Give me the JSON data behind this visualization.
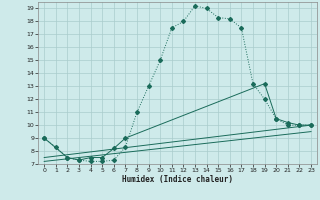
{
  "xlabel": "Humidex (Indice chaleur)",
  "bg_color": "#ceeaea",
  "grid_color": "#aacccc",
  "line_color": "#1a6b5a",
  "xlim": [
    -0.5,
    23.5
  ],
  "ylim": [
    7,
    19.5
  ],
  "xticks": [
    0,
    1,
    2,
    3,
    4,
    5,
    6,
    7,
    8,
    9,
    10,
    11,
    12,
    13,
    14,
    15,
    16,
    17,
    18,
    19,
    20,
    21,
    22,
    23
  ],
  "yticks": [
    7,
    8,
    9,
    10,
    11,
    12,
    13,
    14,
    15,
    16,
    17,
    18,
    19
  ],
  "lines": [
    {
      "x": [
        0,
        1,
        2,
        3,
        4,
        5,
        6,
        7,
        8,
        9,
        10,
        11,
        12,
        13,
        14,
        15,
        16,
        17,
        18,
        19,
        20,
        21,
        22,
        23
      ],
      "y": [
        9,
        8.3,
        7.5,
        7.3,
        7.2,
        7.2,
        7.3,
        8.3,
        11,
        13,
        15,
        17.5,
        18,
        19.2,
        19,
        18.3,
        18.2,
        17.5,
        13.2,
        12,
        10.5,
        10,
        10,
        10
      ]
    },
    {
      "x": [
        0,
        2,
        3,
        4,
        5,
        6,
        7,
        19,
        20,
        21,
        22,
        23
      ],
      "y": [
        9,
        7.5,
        7.3,
        7.5,
        7.5,
        8.2,
        9,
        13.2,
        10.5,
        10.2,
        10,
        10
      ]
    },
    {
      "x": [
        0,
        23
      ],
      "y": [
        7.5,
        10
      ]
    },
    {
      "x": [
        0,
        23
      ],
      "y": [
        7.2,
        9.5
      ]
    }
  ]
}
